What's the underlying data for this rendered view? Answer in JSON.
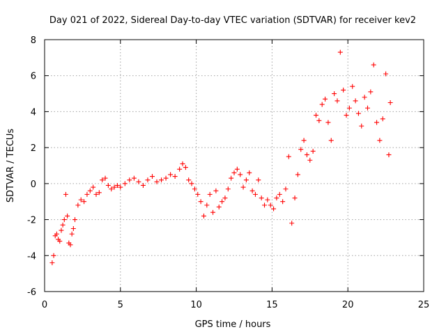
{
  "chart_data": {
    "type": "scatter",
    "title": "Day 021 of 2022, Sidereal Day-to-day VTEC variation (SDTVAR) for receiver kev2",
    "xlabel": "GPS time / hours",
    "ylabel": "SDTVAR / TECUs",
    "xlim": [
      0,
      25
    ],
    "ylim": [
      -6,
      8
    ],
    "xticks": [
      0,
      5,
      10,
      15,
      20,
      25
    ],
    "yticks": [
      -6,
      -4,
      -2,
      0,
      2,
      4,
      6,
      8
    ],
    "grid": true,
    "marker": "+",
    "color": "#ff0000",
    "series": [
      {
        "name": "SDTVAR",
        "x": [
          0.5,
          0.6,
          0.7,
          0.8,
          0.9,
          1.0,
          1.1,
          1.2,
          1.3,
          1.4,
          1.5,
          1.6,
          1.7,
          1.8,
          1.9,
          2.0,
          2.2,
          2.4,
          2.6,
          2.8,
          3.0,
          3.2,
          3.4,
          3.6,
          3.8,
          4.0,
          4.2,
          4.4,
          4.6,
          4.8,
          5.0,
          5.3,
          5.6,
          5.9,
          6.2,
          6.5,
          6.8,
          7.1,
          7.4,
          7.7,
          8.0,
          8.3,
          8.6,
          8.9,
          9.1,
          9.3,
          9.5,
          9.7,
          9.9,
          10.1,
          10.3,
          10.5,
          10.7,
          10.9,
          11.1,
          11.3,
          11.5,
          11.7,
          11.9,
          12.1,
          12.3,
          12.5,
          12.7,
          12.9,
          13.1,
          13.3,
          13.5,
          13.7,
          13.9,
          14.1,
          14.3,
          14.5,
          14.7,
          14.9,
          15.1,
          15.3,
          15.5,
          15.7,
          15.9,
          16.1,
          16.3,
          16.5,
          16.7,
          16.9,
          17.1,
          17.3,
          17.5,
          17.7,
          17.9,
          18.1,
          18.3,
          18.5,
          18.7,
          18.9,
          19.1,
          19.3,
          19.5,
          19.7,
          19.9,
          20.1,
          20.3,
          20.5,
          20.7,
          20.9,
          21.1,
          21.3,
          21.5,
          21.7,
          21.9,
          22.1,
          22.3,
          22.5,
          22.7,
          22.8
        ],
        "y": [
          -4.4,
          -4.0,
          -2.9,
          -2.8,
          -3.1,
          -3.2,
          -2.6,
          -2.3,
          -2.0,
          -0.6,
          -1.8,
          -3.3,
          -3.4,
          -2.8,
          -2.5,
          -2.0,
          -1.2,
          -0.9,
          -1.0,
          -0.6,
          -0.4,
          -0.2,
          -0.6,
          -0.5,
          0.2,
          0.3,
          -0.1,
          -0.3,
          -0.2,
          -0.1,
          -0.2,
          0.0,
          0.2,
          0.3,
          0.1,
          -0.1,
          0.2,
          0.4,
          0.1,
          0.2,
          0.3,
          0.5,
          0.4,
          0.8,
          1.1,
          0.9,
          0.2,
          0.0,
          -0.3,
          -0.6,
          -1.0,
          -1.8,
          -1.2,
          -0.6,
          -1.6,
          -0.4,
          -1.3,
          -1.0,
          -0.8,
          -0.3,
          0.3,
          0.6,
          0.8,
          0.5,
          -0.2,
          0.2,
          0.6,
          -0.4,
          -0.6,
          0.2,
          -0.8,
          -1.2,
          -0.9,
          -1.2,
          -1.4,
          -0.8,
          -0.6,
          -1.0,
          -0.3,
          1.5,
          -2.2,
          -0.8,
          0.5,
          1.9,
          2.4,
          1.6,
          1.3,
          1.8,
          3.8,
          3.5,
          4.4,
          4.7,
          3.4,
          2.4,
          5.0,
          4.6,
          7.3,
          5.2,
          3.8,
          4.2,
          5.4,
          4.6,
          3.9,
          3.2,
          4.8,
          4.2,
          5.1,
          6.6,
          3.4,
          2.4,
          3.6,
          6.1,
          1.6,
          4.5
        ]
      }
    ]
  }
}
